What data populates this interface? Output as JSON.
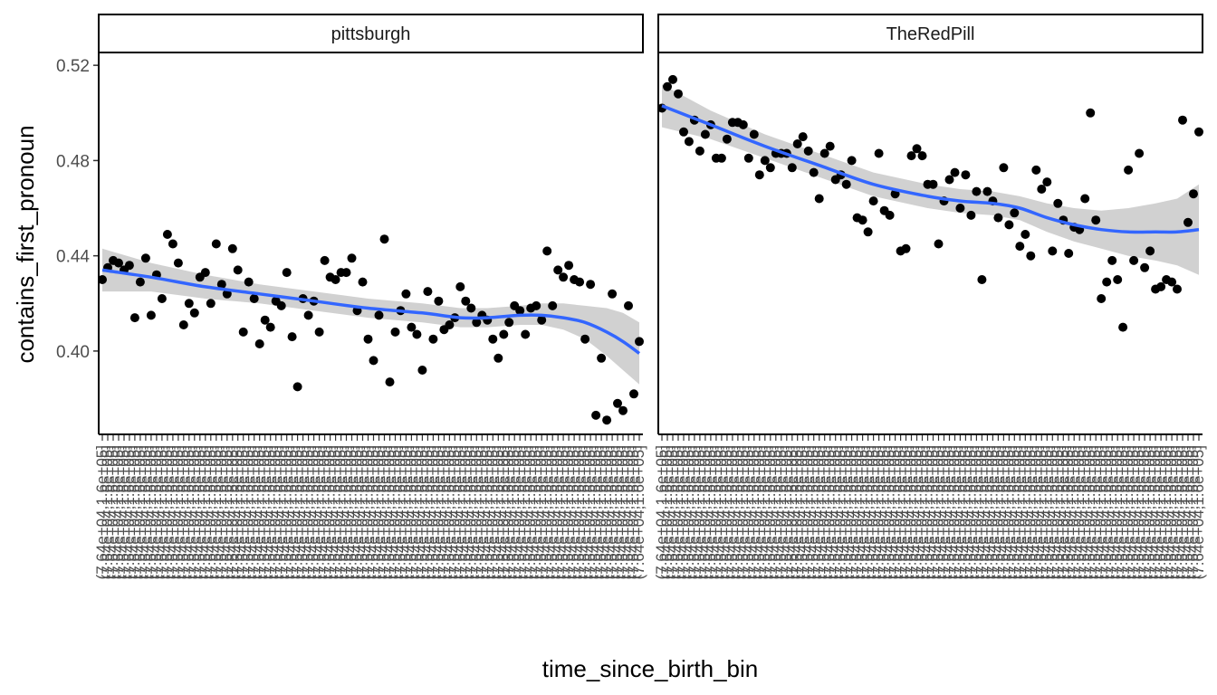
{
  "chart_data": {
    "type": "scatter",
    "facets": [
      "pittsburgh",
      "TheRedPill"
    ],
    "xlabel": "time_since_birth_bin",
    "ylabel": "contains_first_pronoun",
    "ylim": [
      0.365,
      0.525
    ],
    "y_ticks": [
      0.4,
      0.44,
      0.48,
      0.52
    ],
    "y_tick_labels": [
      "0.40",
      "0.44",
      "0.48",
      "0.52"
    ],
    "x_bins": 100,
    "x_tick_labels_legible": false,
    "x_tick_label_sample": [
      "(7.64e+04,1.6e+05]"
    ],
    "smooth": {
      "method": "loess",
      "confidence_band": true,
      "line_color": "#3366FF",
      "band_color": "#BEBEBE"
    },
    "point_color": "#000000",
    "panels": [
      {
        "name": "pittsburgh",
        "points": [
          [
            1,
            0.43
          ],
          [
            2,
            0.435
          ],
          [
            3,
            0.438
          ],
          [
            4,
            0.437
          ],
          [
            5,
            0.434
          ],
          [
            6,
            0.436
          ],
          [
            7,
            0.414
          ],
          [
            8,
            0.429
          ],
          [
            9,
            0.439
          ],
          [
            10,
            0.415
          ],
          [
            11,
            0.432
          ],
          [
            12,
            0.422
          ],
          [
            13,
            0.449
          ],
          [
            14,
            0.445
          ],
          [
            15,
            0.437
          ],
          [
            16,
            0.411
          ],
          [
            17,
            0.42
          ],
          [
            18,
            0.416
          ],
          [
            19,
            0.431
          ],
          [
            20,
            0.433
          ],
          [
            21,
            0.42
          ],
          [
            22,
            0.445
          ],
          [
            23,
            0.428
          ],
          [
            24,
            0.424
          ],
          [
            25,
            0.443
          ],
          [
            26,
            0.434
          ],
          [
            27,
            0.408
          ],
          [
            28,
            0.429
          ],
          [
            29,
            0.422
          ],
          [
            30,
            0.403
          ],
          [
            31,
            0.413
          ],
          [
            32,
            0.41
          ],
          [
            33,
            0.421
          ],
          [
            34,
            0.419
          ],
          [
            35,
            0.433
          ],
          [
            36,
            0.406
          ],
          [
            37,
            0.385
          ],
          [
            38,
            0.422
          ],
          [
            39,
            0.415
          ],
          [
            40,
            0.421
          ],
          [
            41,
            0.408
          ],
          [
            42,
            0.438
          ],
          [
            43,
            0.431
          ],
          [
            44,
            0.43
          ],
          [
            45,
            0.433
          ],
          [
            46,
            0.433
          ],
          [
            47,
            0.439
          ],
          [
            48,
            0.417
          ],
          [
            49,
            0.429
          ],
          [
            50,
            0.405
          ],
          [
            51,
            0.396
          ],
          [
            52,
            0.415
          ],
          [
            53,
            0.447
          ],
          [
            54,
            0.387
          ],
          [
            55,
            0.408
          ],
          [
            56,
            0.417
          ],
          [
            57,
            0.424
          ],
          [
            58,
            0.41
          ],
          [
            59,
            0.407
          ],
          [
            60,
            0.392
          ],
          [
            61,
            0.425
          ],
          [
            62,
            0.405
          ],
          [
            63,
            0.421
          ],
          [
            64,
            0.409
          ],
          [
            65,
            0.411
          ],
          [
            66,
            0.414
          ],
          [
            67,
            0.427
          ],
          [
            68,
            0.421
          ],
          [
            69,
            0.418
          ],
          [
            70,
            0.412
          ],
          [
            71,
            0.415
          ],
          [
            72,
            0.413
          ],
          [
            73,
            0.405
          ],
          [
            74,
            0.397
          ],
          [
            75,
            0.407
          ],
          [
            76,
            0.412
          ],
          [
            77,
            0.419
          ],
          [
            78,
            0.417
          ],
          [
            79,
            0.407
          ],
          [
            80,
            0.418
          ],
          [
            81,
            0.419
          ],
          [
            82,
            0.413
          ],
          [
            83,
            0.442
          ],
          [
            84,
            0.419
          ],
          [
            85,
            0.434
          ],
          [
            86,
            0.431
          ],
          [
            87,
            0.436
          ],
          [
            88,
            0.43
          ],
          [
            89,
            0.429
          ],
          [
            90,
            0.405
          ],
          [
            91,
            0.428
          ],
          [
            92,
            0.373
          ],
          [
            93,
            0.397
          ],
          [
            94,
            0.371
          ],
          [
            95,
            0.424
          ],
          [
            96,
            0.378
          ],
          [
            97,
            0.375
          ],
          [
            98,
            0.419
          ],
          [
            99,
            0.382
          ],
          [
            100,
            0.404
          ]
        ],
        "smooth_line": [
          [
            1,
            0.434
          ],
          [
            10,
            0.431
          ],
          [
            20,
            0.427
          ],
          [
            30,
            0.424
          ],
          [
            40,
            0.421
          ],
          [
            50,
            0.418
          ],
          [
            60,
            0.416
          ],
          [
            67,
            0.414
          ],
          [
            72,
            0.414
          ],
          [
            78,
            0.415
          ],
          [
            82,
            0.415
          ],
          [
            86,
            0.414
          ],
          [
            90,
            0.412
          ],
          [
            94,
            0.408
          ],
          [
            97,
            0.404
          ],
          [
            100,
            0.399
          ]
        ],
        "smooth_band": [
          [
            1,
            0.425,
            0.443
          ],
          [
            10,
            0.425,
            0.437
          ],
          [
            20,
            0.422,
            0.432
          ],
          [
            30,
            0.42,
            0.428
          ],
          [
            40,
            0.417,
            0.425
          ],
          [
            50,
            0.414,
            0.422
          ],
          [
            60,
            0.412,
            0.42
          ],
          [
            67,
            0.41,
            0.418
          ],
          [
            72,
            0.41,
            0.418
          ],
          [
            78,
            0.411,
            0.419
          ],
          [
            82,
            0.411,
            0.42
          ],
          [
            86,
            0.409,
            0.42
          ],
          [
            90,
            0.405,
            0.419
          ],
          [
            94,
            0.398,
            0.418
          ],
          [
            97,
            0.392,
            0.416
          ],
          [
            100,
            0.386,
            0.412
          ]
        ]
      },
      {
        "name": "TheRedPill",
        "points": [
          [
            1,
            0.502
          ],
          [
            2,
            0.511
          ],
          [
            3,
            0.514
          ],
          [
            4,
            0.508
          ],
          [
            5,
            0.492
          ],
          [
            6,
            0.488
          ],
          [
            7,
            0.497
          ],
          [
            8,
            0.484
          ],
          [
            9,
            0.491
          ],
          [
            10,
            0.495
          ],
          [
            11,
            0.481
          ],
          [
            12,
            0.481
          ],
          [
            13,
            0.489
          ],
          [
            14,
            0.496
          ],
          [
            15,
            0.496
          ],
          [
            16,
            0.495
          ],
          [
            17,
            0.481
          ],
          [
            18,
            0.491
          ],
          [
            19,
            0.474
          ],
          [
            20,
            0.48
          ],
          [
            21,
            0.477
          ],
          [
            22,
            0.483
          ],
          [
            23,
            0.483
          ],
          [
            24,
            0.483
          ],
          [
            25,
            0.477
          ],
          [
            26,
            0.487
          ],
          [
            27,
            0.49
          ],
          [
            28,
            0.484
          ],
          [
            29,
            0.475
          ],
          [
            30,
            0.464
          ],
          [
            31,
            0.483
          ],
          [
            32,
            0.486
          ],
          [
            33,
            0.472
          ],
          [
            34,
            0.474
          ],
          [
            35,
            0.47
          ],
          [
            36,
            0.48
          ],
          [
            37,
            0.456
          ],
          [
            38,
            0.455
          ],
          [
            39,
            0.45
          ],
          [
            40,
            0.463
          ],
          [
            41,
            0.483
          ],
          [
            42,
            0.459
          ],
          [
            43,
            0.457
          ],
          [
            44,
            0.466
          ],
          [
            45,
            0.442
          ],
          [
            46,
            0.443
          ],
          [
            47,
            0.482
          ],
          [
            48,
            0.485
          ],
          [
            49,
            0.482
          ],
          [
            50,
            0.47
          ],
          [
            51,
            0.47
          ],
          [
            52,
            0.445
          ],
          [
            53,
            0.463
          ],
          [
            54,
            0.472
          ],
          [
            55,
            0.475
          ],
          [
            56,
            0.46
          ],
          [
            57,
            0.474
          ],
          [
            58,
            0.457
          ],
          [
            59,
            0.467
          ],
          [
            60,
            0.43
          ],
          [
            61,
            0.467
          ],
          [
            62,
            0.463
          ],
          [
            63,
            0.456
          ],
          [
            64,
            0.477
          ],
          [
            65,
            0.453
          ],
          [
            66,
            0.458
          ],
          [
            67,
            0.444
          ],
          [
            68,
            0.449
          ],
          [
            69,
            0.44
          ],
          [
            70,
            0.476
          ],
          [
            71,
            0.468
          ],
          [
            72,
            0.471
          ],
          [
            73,
            0.442
          ],
          [
            74,
            0.462
          ],
          [
            75,
            0.455
          ],
          [
            76,
            0.441
          ],
          [
            77,
            0.452
          ],
          [
            78,
            0.451
          ],
          [
            79,
            0.464
          ],
          [
            80,
            0.5
          ],
          [
            81,
            0.455
          ],
          [
            82,
            0.422
          ],
          [
            83,
            0.429
          ],
          [
            84,
            0.438
          ],
          [
            85,
            0.43
          ],
          [
            86,
            0.41
          ],
          [
            87,
            0.476
          ],
          [
            88,
            0.438
          ],
          [
            89,
            0.483
          ],
          [
            90,
            0.435
          ],
          [
            91,
            0.442
          ],
          [
            92,
            0.426
          ],
          [
            93,
            0.427
          ],
          [
            94,
            0.43
          ],
          [
            95,
            0.429
          ],
          [
            96,
            0.426
          ],
          [
            97,
            0.497
          ],
          [
            98,
            0.454
          ],
          [
            99,
            0.466
          ],
          [
            100,
            0.492
          ]
        ],
        "smooth_line": [
          [
            1,
            0.503
          ],
          [
            10,
            0.495
          ],
          [
            20,
            0.486
          ],
          [
            30,
            0.478
          ],
          [
            40,
            0.47
          ],
          [
            50,
            0.465
          ],
          [
            56,
            0.463
          ],
          [
            62,
            0.462
          ],
          [
            67,
            0.46
          ],
          [
            72,
            0.456
          ],
          [
            77,
            0.453
          ],
          [
            82,
            0.451
          ],
          [
            87,
            0.45
          ],
          [
            92,
            0.45
          ],
          [
            96,
            0.45
          ],
          [
            100,
            0.451
          ]
        ],
        "smooth_band": [
          [
            1,
            0.494,
            0.512
          ],
          [
            10,
            0.489,
            0.501
          ],
          [
            20,
            0.481,
            0.491
          ],
          [
            30,
            0.473,
            0.483
          ],
          [
            40,
            0.465,
            0.475
          ],
          [
            50,
            0.46,
            0.47
          ],
          [
            56,
            0.458,
            0.468
          ],
          [
            62,
            0.457,
            0.467
          ],
          [
            67,
            0.455,
            0.465
          ],
          [
            72,
            0.45,
            0.462
          ],
          [
            77,
            0.446,
            0.46
          ],
          [
            82,
            0.443,
            0.459
          ],
          [
            87,
            0.44,
            0.46
          ],
          [
            92,
            0.438,
            0.462
          ],
          [
            96,
            0.436,
            0.464
          ],
          [
            100,
            0.432,
            0.47
          ]
        ]
      }
    ]
  }
}
